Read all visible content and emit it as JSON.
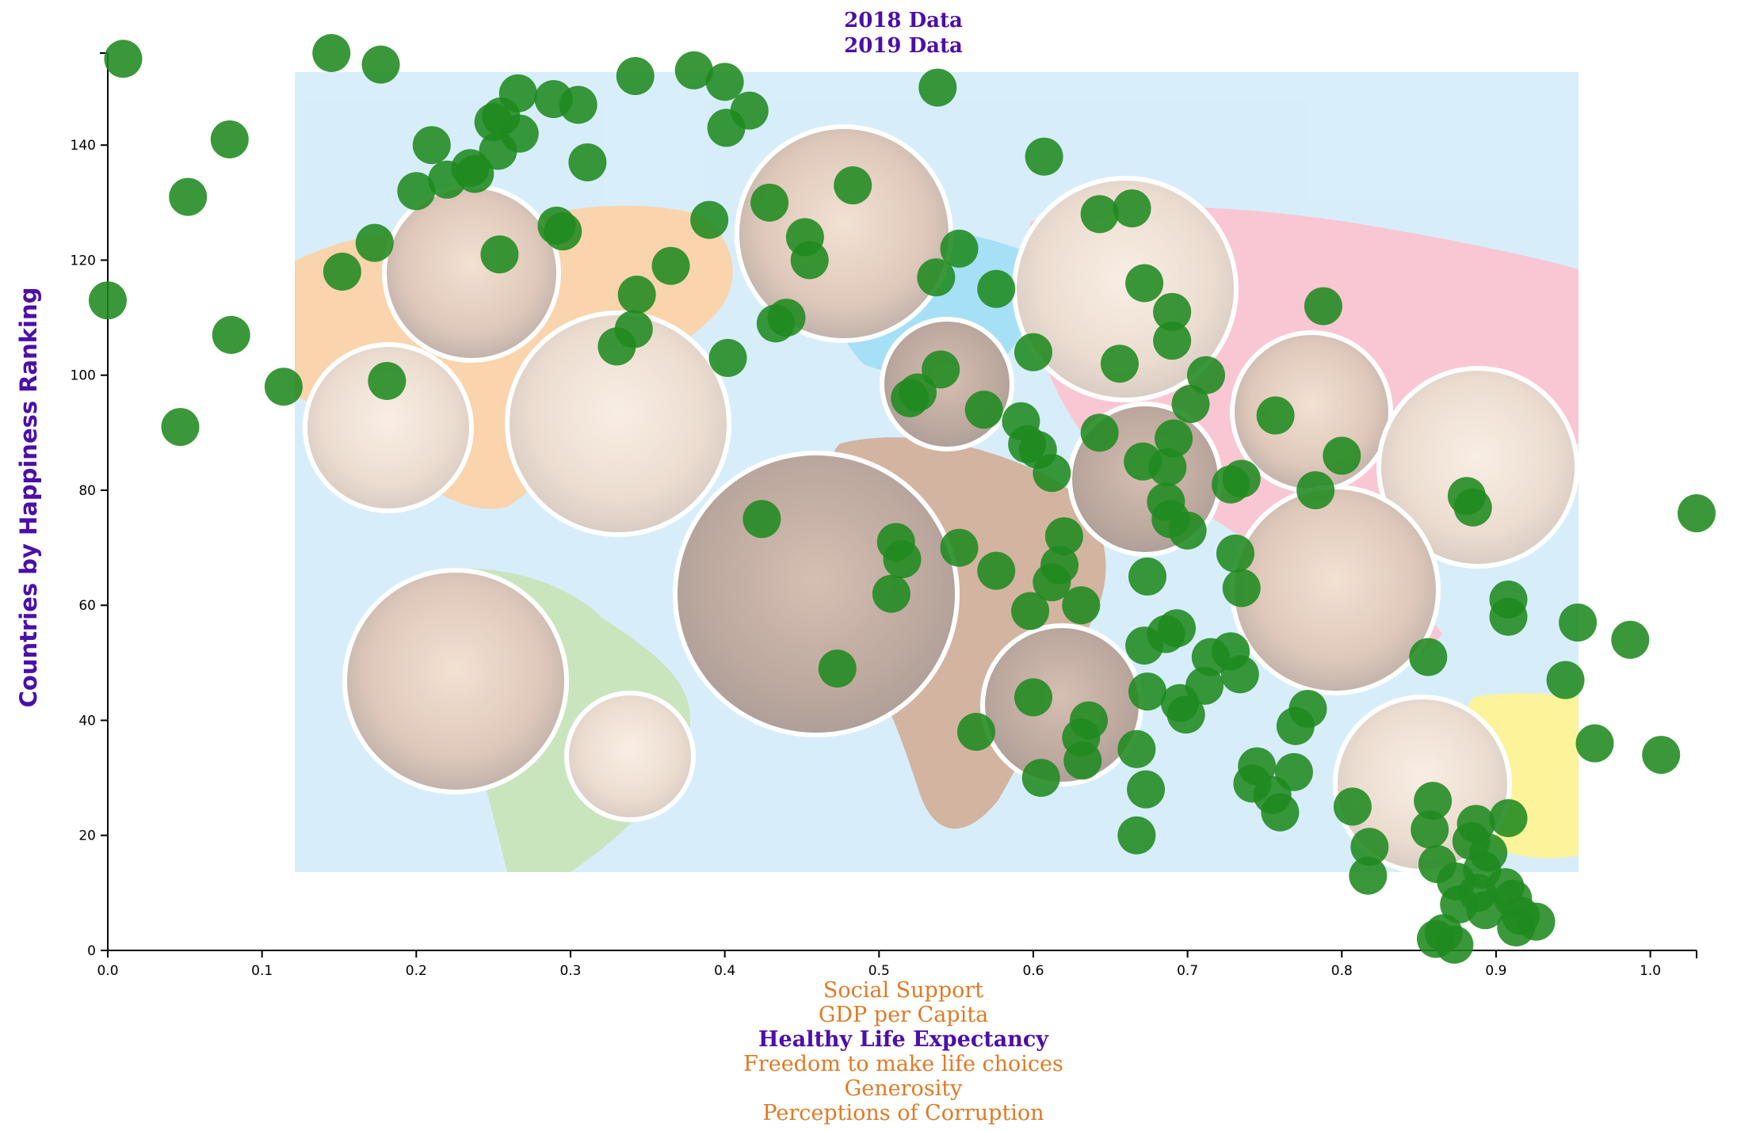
{
  "chart_data": {
    "type": "scatter",
    "title_options": [
      "2018 Data",
      "2019 Data"
    ],
    "ylabel": "Countries by Happiness Ranking",
    "x_options": [
      {
        "label": "Social Support",
        "active": false
      },
      {
        "label": "GDP per Capita",
        "active": false
      },
      {
        "label": "Healthy Life Expectancy",
        "active": true
      },
      {
        "label": "Freedom to make life choices",
        "active": false
      },
      {
        "label": "Generosity",
        "active": false
      },
      {
        "label": "Perceptions of Corruption",
        "active": false
      }
    ],
    "xlim": [
      0,
      1.03
    ],
    "ylim": [
      0,
      156
    ],
    "x_ticks": [
      "0.0",
      "0.1",
      "0.2",
      "0.3",
      "0.4",
      "0.5",
      "0.6",
      "0.7",
      "0.8",
      "0.9",
      "1.0"
    ],
    "y_ticks": [
      "0",
      "20",
      "40",
      "60",
      "80",
      "100",
      "120",
      "140"
    ],
    "marker_color": "#1f8a1f",
    "points": [
      [
        0.01,
        155
      ],
      [
        0.145,
        156
      ],
      [
        0.177,
        154
      ],
      [
        0.079,
        141
      ],
      [
        0.052,
        131
      ],
      [
        0.0,
        113
      ],
      [
        0.08,
        107
      ],
      [
        0.114,
        98
      ],
      [
        0.047,
        91
      ],
      [
        0.152,
        118
      ],
      [
        0.173,
        123
      ],
      [
        0.181,
        99
      ],
      [
        0.21,
        140
      ],
      [
        0.2,
        132
      ],
      [
        0.22,
        134
      ],
      [
        0.235,
        136
      ],
      [
        0.238,
        135
      ],
      [
        0.25,
        144
      ],
      [
        0.255,
        145
      ],
      [
        0.253,
        139
      ],
      [
        0.267,
        142
      ],
      [
        0.266,
        149
      ],
      [
        0.289,
        148
      ],
      [
        0.305,
        147
      ],
      [
        0.311,
        137
      ],
      [
        0.291,
        126
      ],
      [
        0.295,
        125
      ],
      [
        0.254,
        121
      ],
      [
        0.342,
        152
      ],
      [
        0.38,
        153
      ],
      [
        0.4,
        151
      ],
      [
        0.416,
        146
      ],
      [
        0.401,
        143
      ],
      [
        0.343,
        114
      ],
      [
        0.341,
        108
      ],
      [
        0.33,
        105
      ],
      [
        0.365,
        119
      ],
      [
        0.39,
        127
      ],
      [
        0.402,
        103
      ],
      [
        0.429,
        130
      ],
      [
        0.433,
        109
      ],
      [
        0.44,
        110
      ],
      [
        0.452,
        124
      ],
      [
        0.455,
        120
      ],
      [
        0.483,
        133
      ],
      [
        0.538,
        150
      ],
      [
        0.607,
        138
      ],
      [
        0.552,
        122
      ],
      [
        0.537,
        117
      ],
      [
        0.54,
        101
      ],
      [
        0.525,
        97
      ],
      [
        0.52,
        96
      ],
      [
        0.576,
        115
      ],
      [
        0.6,
        104
      ],
      [
        0.664,
        129
      ],
      [
        0.643,
        128
      ],
      [
        0.672,
        116
      ],
      [
        0.69,
        111
      ],
      [
        0.69,
        106
      ],
      [
        0.656,
        102
      ],
      [
        0.712,
        100
      ],
      [
        0.702,
        95
      ],
      [
        0.568,
        94
      ],
      [
        0.592,
        92
      ],
      [
        0.596,
        88
      ],
      [
        0.603,
        87
      ],
      [
        0.612,
        83
      ],
      [
        0.643,
        90
      ],
      [
        0.671,
        85
      ],
      [
        0.687,
        84
      ],
      [
        0.691,
        89
      ],
      [
        0.686,
        78
      ],
      [
        0.689,
        75
      ],
      [
        0.7,
        73
      ],
      [
        0.728,
        81
      ],
      [
        0.735,
        82
      ],
      [
        0.757,
        93
      ],
      [
        0.788,
        112
      ],
      [
        0.8,
        86
      ],
      [
        0.783,
        80
      ],
      [
        0.881,
        79
      ],
      [
        0.885,
        77
      ],
      [
        0.424,
        75
      ],
      [
        0.511,
        71
      ],
      [
        0.515,
        68
      ],
      [
        0.552,
        70
      ],
      [
        0.576,
        66
      ],
      [
        0.62,
        72
      ],
      [
        0.617,
        67
      ],
      [
        0.612,
        64
      ],
      [
        0.631,
        60
      ],
      [
        0.598,
        59
      ],
      [
        0.674,
        65
      ],
      [
        0.508,
        62
      ],
      [
        0.731,
        69
      ],
      [
        0.735,
        63
      ],
      [
        0.908,
        61
      ],
      [
        0.908,
        58
      ],
      [
        0.953,
        57
      ],
      [
        0.987,
        54
      ],
      [
        0.856,
        51
      ],
      [
        0.945,
        47
      ],
      [
        0.473,
        49
      ],
      [
        0.563,
        38
      ],
      [
        0.6,
        44
      ],
      [
        0.672,
        53
      ],
      [
        0.686,
        55
      ],
      [
        0.693,
        56
      ],
      [
        0.715,
        51
      ],
      [
        0.728,
        52
      ],
      [
        0.711,
        46
      ],
      [
        0.734,
        48
      ],
      [
        0.674,
        45
      ],
      [
        0.695,
        43
      ],
      [
        0.699,
        41
      ],
      [
        0.636,
        40
      ],
      [
        0.631,
        37
      ],
      [
        0.632,
        33
      ],
      [
        0.605,
        30
      ],
      [
        0.667,
        35
      ],
      [
        0.673,
        28
      ],
      [
        0.667,
        20
      ],
      [
        0.745,
        32
      ],
      [
        0.742,
        29
      ],
      [
        0.769,
        31
      ],
      [
        0.77,
        39
      ],
      [
        0.778,
        42
      ],
      [
        0.755,
        27
      ],
      [
        0.76,
        24
      ],
      [
        0.807,
        25
      ],
      [
        0.818,
        18
      ],
      [
        0.817,
        13
      ],
      [
        0.964,
        36
      ],
      [
        1.007,
        34
      ],
      [
        1.03,
        76
      ],
      [
        0.859,
        26
      ],
      [
        0.857,
        21
      ],
      [
        0.862,
        15
      ],
      [
        0.887,
        22
      ],
      [
        0.908,
        23
      ],
      [
        0.884,
        19
      ],
      [
        0.895,
        17
      ],
      [
        0.891,
        14
      ],
      [
        0.874,
        12
      ],
      [
        0.888,
        10
      ],
      [
        0.906,
        11
      ],
      [
        0.911,
        9
      ],
      [
        0.876,
        8
      ],
      [
        0.893,
        7
      ],
      [
        0.916,
        6
      ],
      [
        0.926,
        5
      ],
      [
        0.913,
        4
      ],
      [
        0.861,
        2
      ],
      [
        0.866,
        3
      ],
      [
        0.873,
        1
      ]
    ]
  }
}
